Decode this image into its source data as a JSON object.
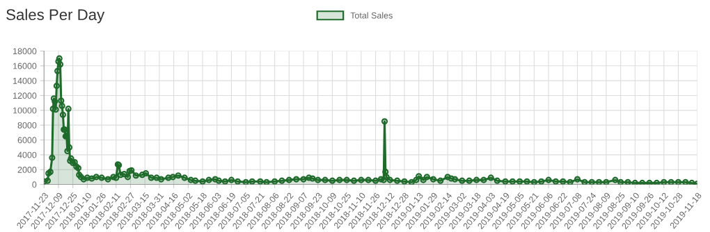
{
  "chart_data": {
    "type": "area",
    "title": "Sales Per Day",
    "x": [
      "2017-11-23",
      "2017-11-27",
      "2017-11-28",
      "2017-11-30",
      "2017-12-02",
      "2017-12-03",
      "2017-12-04",
      "2017-12-05",
      "2017-12-06",
      "2017-12-07",
      "2017-12-08",
      "2017-12-09",
      "2017-12-10",
      "2017-12-11",
      "2017-12-12",
      "2017-12-13",
      "2017-12-14",
      "2017-12-15",
      "2017-12-16",
      "2017-12-17",
      "2017-12-18",
      "2017-12-19",
      "2017-12-20",
      "2017-12-21",
      "2017-12-22",
      "2017-12-23",
      "2017-12-25",
      "2017-12-27",
      "2017-12-29",
      "2017-12-31",
      "2018-01-01",
      "2018-01-03",
      "2018-01-06",
      "2018-01-10",
      "2018-01-15",
      "2018-01-20",
      "2018-01-26",
      "2018-02-02",
      "2018-02-08",
      "2018-02-11",
      "2018-02-13",
      "2018-02-14",
      "2018-02-16",
      "2018-02-20",
      "2018-02-24",
      "2018-02-26",
      "2018-02-28",
      "2018-03-05",
      "2018-03-12",
      "2018-03-16",
      "2018-03-22",
      "2018-03-28",
      "2018-04-02",
      "2018-04-10",
      "2018-04-15",
      "2018-04-21",
      "2018-04-28",
      "2018-05-05",
      "2018-05-10",
      "2018-05-18",
      "2018-05-25",
      "2018-06-01",
      "2018-06-05",
      "2018-06-12",
      "2018-06-19",
      "2018-06-26",
      "2018-07-05",
      "2018-07-12",
      "2018-07-21",
      "2018-07-28",
      "2018-08-06",
      "2018-08-14",
      "2018-08-22",
      "2018-08-30",
      "2018-09-07",
      "2018-09-13",
      "2018-09-17",
      "2018-09-23",
      "2018-10-01",
      "2018-10-09",
      "2018-10-17",
      "2018-10-25",
      "2018-11-02",
      "2018-11-10",
      "2018-11-18",
      "2018-11-26",
      "2018-12-02",
      "2018-12-05",
      "2018-12-06",
      "2018-12-07",
      "2018-12-08",
      "2018-12-12",
      "2018-12-20",
      "2018-12-28",
      "2019-01-05",
      "2019-01-10",
      "2019-01-13",
      "2019-01-18",
      "2019-01-22",
      "2019-01-29",
      "2019-02-06",
      "2019-02-14",
      "2019-02-18",
      "2019-02-22",
      "2019-03-02",
      "2019-03-10",
      "2019-03-18",
      "2019-03-26",
      "2019-04-03",
      "2019-04-10",
      "2019-04-19",
      "2019-04-27",
      "2019-05-05",
      "2019-05-13",
      "2019-05-21",
      "2019-05-29",
      "2019-06-06",
      "2019-06-14",
      "2019-06-22",
      "2019-06-30",
      "2019-07-08",
      "2019-07-16",
      "2019-07-24",
      "2019-08-01",
      "2019-08-09",
      "2019-08-19",
      "2019-08-25",
      "2019-09-02",
      "2019-09-10",
      "2019-09-18",
      "2019-09-26",
      "2019-10-04",
      "2019-10-12",
      "2019-10-20",
      "2019-10-28",
      "2019-11-05",
      "2019-11-12",
      "2019-11-18"
    ],
    "series": [
      {
        "name": "Total Sales",
        "color": "#1f6b2b",
        "values": [
          400,
          500,
          1500,
          1700,
          3600,
          10200,
          11600,
          11200,
          10100,
          13300,
          15300,
          16600,
          17000,
          16200,
          11300,
          10600,
          9400,
          7400,
          7400,
          6500,
          6600,
          4500,
          10200,
          5000,
          3200,
          3500,
          2900,
          3000,
          2400,
          2200,
          1300,
          1000,
          700,
          900,
          800,
          1000,
          900,
          700,
          1000,
          900,
          2700,
          2600,
          1300,
          1400,
          1000,
          1800,
          1900,
          1200,
          1300,
          1500,
          900,
          900,
          700,
          900,
          1000,
          1200,
          900,
          600,
          500,
          400,
          600,
          700,
          500,
          400,
          600,
          400,
          300,
          400,
          400,
          300,
          400,
          500,
          600,
          700,
          700,
          900,
          800,
          600,
          600,
          500,
          600,
          600,
          500,
          600,
          600,
          500,
          700,
          600,
          8500,
          1700,
          1000,
          600,
          500,
          400,
          300,
          600,
          1100,
          600,
          1000,
          700,
          500,
          1000,
          800,
          700,
          500,
          500,
          600,
          600,
          900,
          500,
          400,
          400,
          400,
          400,
          300,
          400,
          600,
          400,
          400,
          300,
          700,
          300,
          300,
          300,
          300,
          600,
          300,
          300,
          200,
          200,
          200,
          200,
          300,
          300,
          300,
          300,
          200,
          100
        ]
      }
    ],
    "xlim": [
      "2017-11-23",
      "2019-11-18"
    ],
    "xticks": [
      "2017-11-23",
      "2017-12-09",
      "2017-12-25",
      "2018-01-10",
      "2018-01-26",
      "2018-02-11",
      "2018-02-27",
      "2018-03-15",
      "2018-03-31",
      "2018-04-16",
      "2018-05-02",
      "2018-05-18",
      "2018-06-03",
      "2018-06-19",
      "2018-07-05",
      "2018-07-21",
      "2018-08-06",
      "2018-08-22",
      "2018-09-07",
      "2018-09-23",
      "2018-10-09",
      "2018-10-25",
      "2018-11-10",
      "2018-11-26",
      "2018-12-12",
      "2018-12-28",
      "2019-01-13",
      "2019-01-29",
      "2019-02-14",
      "2019-03-02",
      "2019-03-18",
      "2019-04-03",
      "2019-04-19",
      "2019-05-05",
      "2019-05-21",
      "2019-06-06",
      "2019-06-22",
      "2019-07-08",
      "2019-07-24",
      "2019-08-09",
      "2019-08-25",
      "2019-09-10",
      "2019-09-26",
      "2019-10-12",
      "2019-10-28",
      "2019-11-18"
    ],
    "ylim": [
      0,
      18000
    ],
    "yticks": [
      0,
      2000,
      4000,
      6000,
      8000,
      10000,
      12000,
      14000,
      16000,
      18000
    ],
    "grid": true,
    "legend": "top",
    "marker": "circle",
    "line_style": "solid"
  }
}
